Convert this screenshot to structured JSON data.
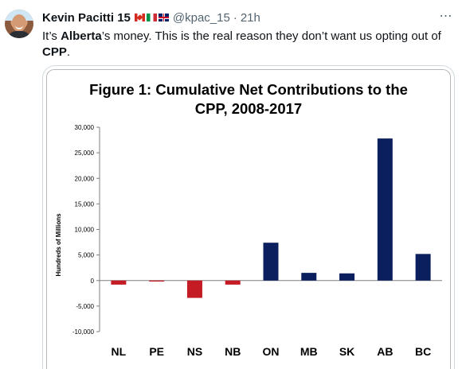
{
  "author": {
    "name": "Kevin Pacitti 15",
    "flags": [
      "canada-flag",
      "italy-flag",
      "uk-flag"
    ],
    "handle": "@kpac_15",
    "separator": "·",
    "time": "21h"
  },
  "more_icon": "⋯",
  "tweet": {
    "text_1": "It’s ",
    "bold_1": "Alberta",
    "text_2": "’s money.  This is the real reason they don’t want us opting out of ",
    "bold_2": "CPP",
    "text_3": "."
  },
  "colors": {
    "positive_bar": "#0b1f5e",
    "negative_bar": "#c41b24",
    "text_secondary": "#536471"
  },
  "chart_data": {
    "type": "bar",
    "title_line1": "Figure 1: Cumulative Net Contributions to the",
    "title_line2": "CPP, 2008-2017",
    "ylabel": "Hundreds of Millions",
    "xlabel": "",
    "ylim": [
      -10000,
      30000
    ],
    "yticks": [
      30000,
      25000,
      20000,
      15000,
      10000,
      5000,
      0,
      -5000,
      -10000
    ],
    "ytick_labels": [
      "30,000",
      "25,000",
      "20,000",
      "15,000",
      "10,000",
      "5,000",
      "0",
      "-5,000",
      "-10,000"
    ],
    "categories": [
      "NL",
      "PE",
      "NS",
      "NB",
      "ON",
      "MB",
      "SK",
      "AB",
      "BC"
    ],
    "values": [
      -800,
      -200,
      -3400,
      -800,
      7400,
      1500,
      1400,
      27800,
      5200
    ],
    "grid": false,
    "legend": "none"
  }
}
